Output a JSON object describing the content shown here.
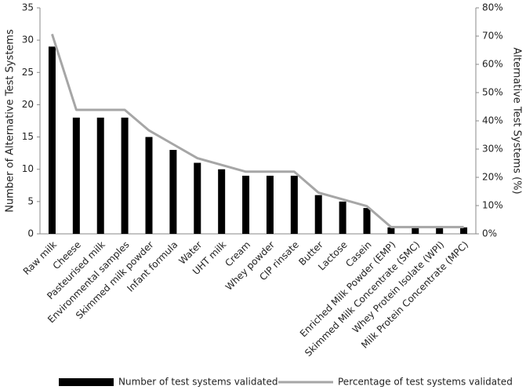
{
  "chart_data": {
    "type": "bar",
    "categories": [
      "Raw milk",
      "Cheese",
      "Pasteurised milk",
      "Environmental samples",
      "Skimmed milk powder",
      "Infant formula",
      "Water",
      "UHT milk",
      "Cream",
      "Whey powder",
      "CIP rinsate",
      "Butter",
      "Lactose",
      "Casein",
      "Enriched Milk Powder (EMP)",
      "Skimmed Milk Concentrate (SMC)",
      "Whey Protein Isolate (WPI)",
      "Milk Protein Concentrate (MPC)"
    ],
    "series": [
      {
        "name": "Number of test systems validated",
        "color": "#000000",
        "type": "bar",
        "values": [
          29,
          18,
          18,
          18,
          15,
          13,
          11,
          10,
          9,
          9,
          9,
          6,
          5,
          4,
          1,
          1,
          1,
          1
        ]
      },
      {
        "name": "Percentage of test systems validated",
        "color": "#a6a6a6",
        "type": "line",
        "axis": "y2",
        "values": [
          70.7,
          43.9,
          43.9,
          43.9,
          36.6,
          31.7,
          26.8,
          24.4,
          22.0,
          22.0,
          22.0,
          14.6,
          12.2,
          9.8,
          2.4,
          2.4,
          2.4,
          2.4
        ]
      }
    ],
    "y_label": "Number of Alternative Test Systems",
    "y2_label": "Alternative Test Systems (%)",
    "ylim": [
      0,
      35
    ],
    "yticks": [
      0,
      5,
      10,
      15,
      20,
      25,
      30,
      35
    ],
    "y2lim": [
      0,
      80
    ],
    "y2ticks": [
      {
        "value": 0,
        "label": "0%"
      },
      {
        "value": 10,
        "label": "10%"
      },
      {
        "value": 20,
        "label": "20%"
      },
      {
        "value": 30,
        "label": "30%"
      },
      {
        "value": 40,
        "label": "40%"
      },
      {
        "value": 50,
        "label": "50%"
      },
      {
        "value": 60,
        "label": "60%"
      },
      {
        "value": 70,
        "label": "70%"
      },
      {
        "value": 80,
        "label": "80%"
      }
    ],
    "legend": "bottom"
  }
}
